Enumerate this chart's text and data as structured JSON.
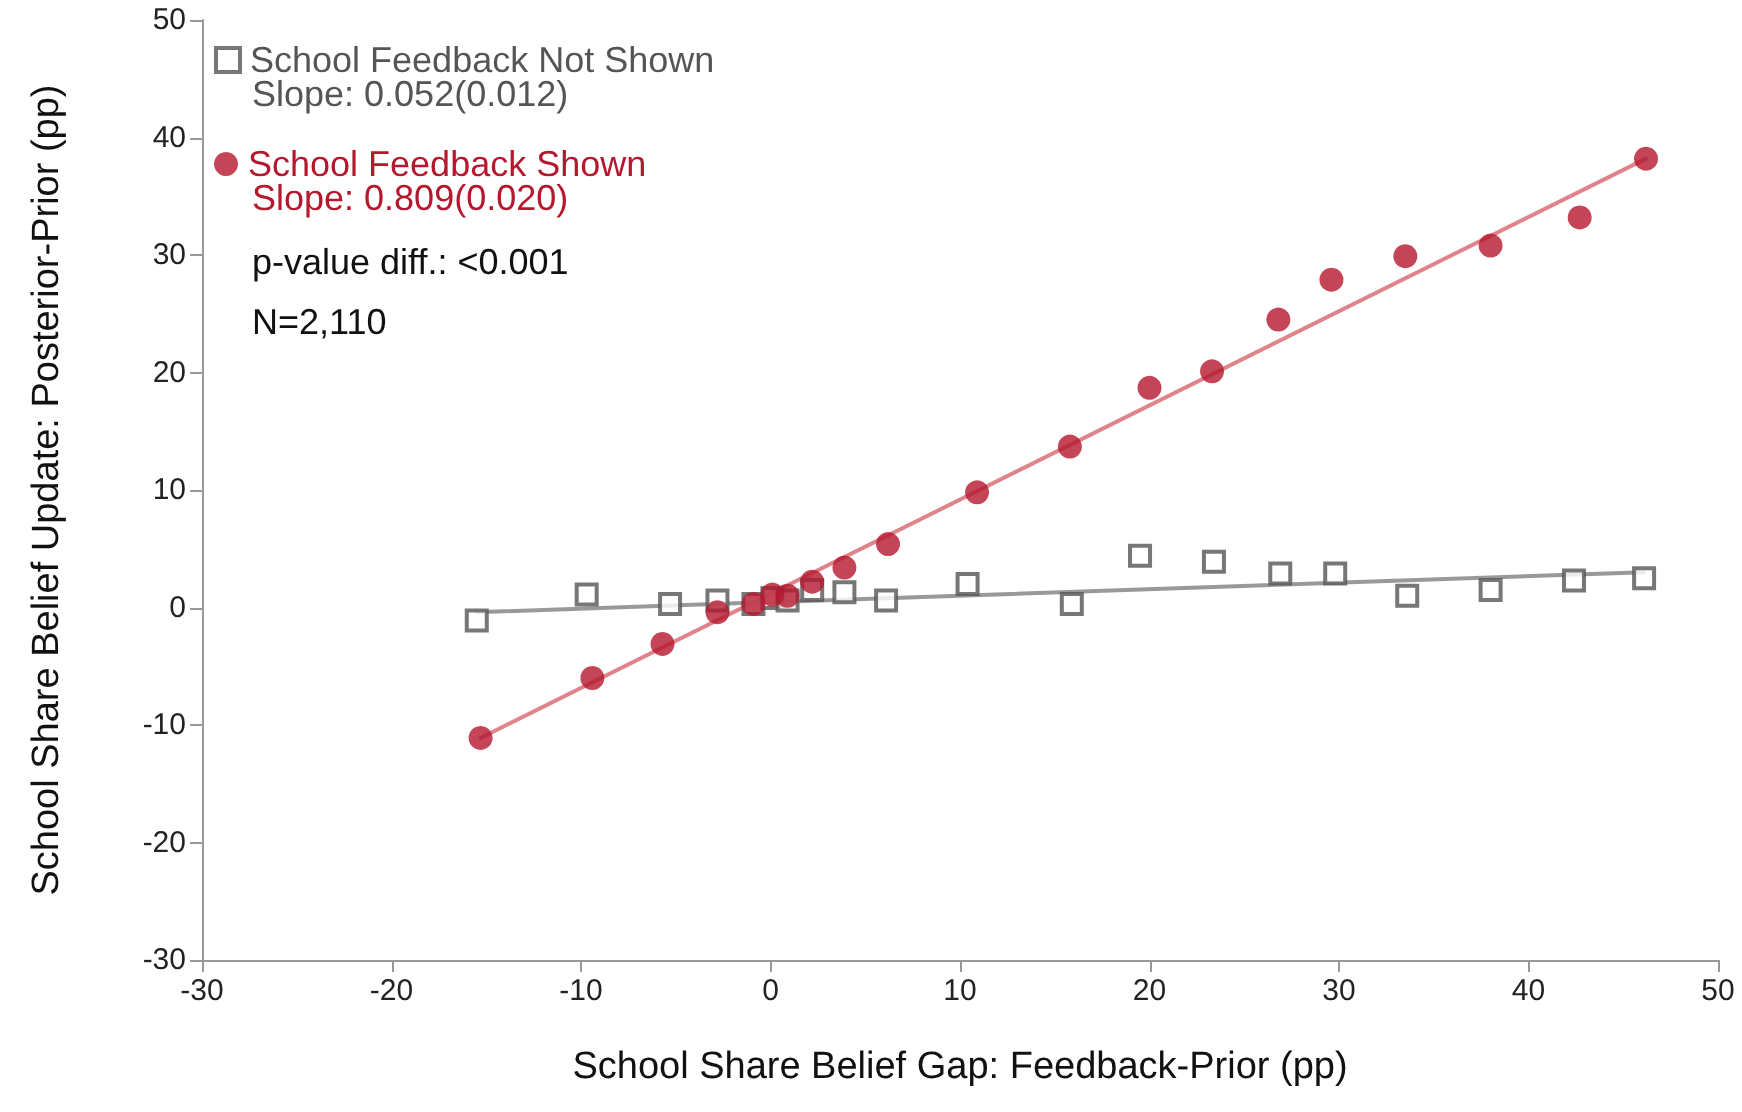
{
  "chart_data": {
    "type": "scatter",
    "xlabel": "School Share Belief Gap: Feedback-Prior (pp)",
    "ylabel": "School Share Belief Update: Posterior-Prior (pp)",
    "xlim": [
      -30,
      50
    ],
    "xticks": [
      -30,
      -20,
      -10,
      0,
      10,
      20,
      30,
      40,
      50
    ],
    "ylim": [
      -30,
      50
    ],
    "yticks": [
      -30,
      -20,
      -10,
      0,
      10,
      20,
      30,
      40,
      50
    ],
    "legend": "top left",
    "series": [
      {
        "name": "School Feedback Not Shown",
        "marker": "square",
        "color": "#555555",
        "x": [
          -15.5,
          -9.7,
          -5.3,
          -2.8,
          -0.9,
          0.1,
          0.9,
          2.2,
          3.9,
          6.1,
          10.4,
          15.9,
          19.5,
          23.4,
          26.9,
          29.8,
          33.6,
          38.0,
          42.4,
          46.1
        ],
        "values": [
          -1.1,
          1.1,
          0.3,
          0.6,
          0.3,
          0.8,
          0.6,
          1.5,
          1.3,
          0.6,
          2.0,
          0.3,
          4.4,
          3.9,
          2.9,
          2.9,
          1.0,
          1.5,
          2.3,
          2.5
        ]
      },
      {
        "name": "School Feedback Shown",
        "marker": "circle",
        "color": "#b5172d",
        "x": [
          -15.3,
          -9.4,
          -5.7,
          -2.8,
          -0.9,
          0.1,
          0.9,
          2.2,
          3.9,
          6.2,
          10.9,
          15.8,
          20.0,
          23.3,
          26.8,
          29.6,
          33.5,
          38.0,
          42.7,
          46.2
        ],
        "values": [
          -11.1,
          -6.0,
          -3.1,
          -0.4,
          0.3,
          1.1,
          1.0,
          2.2,
          3.4,
          5.4,
          9.8,
          13.7,
          18.7,
          20.1,
          24.5,
          27.9,
          29.9,
          30.8,
          33.2,
          38.2
        ]
      },
      {
        "type": "line",
        "marker": "none",
        "line_style": "solid",
        "color": "#999999",
        "x": [
          -15.5,
          46.1
        ],
        "values": [
          -0.4,
          3.0
        ]
      },
      {
        "type": "line",
        "marker": "none",
        "line_style": "solid",
        "color": "#e0848c",
        "x": [
          -15.3,
          46.2
        ],
        "values": [
          -11.1,
          38.2
        ]
      }
    ],
    "annotations": [
      "Slope: 0.052(0.012)",
      "Slope: 0.809(0.020)",
      "p-value diff.: <0.001",
      "N=2,110"
    ]
  }
}
